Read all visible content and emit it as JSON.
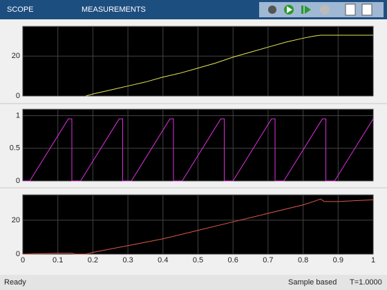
{
  "ui": {
    "tabs": [
      "SCOPE",
      "MEASUREMENTS"
    ],
    "status": {
      "left": "Ready",
      "mode": "Sample based",
      "time": "T=1.0000"
    }
  },
  "chart_data": [
    {
      "type": "line",
      "xlim": [
        0,
        1
      ],
      "ylim": [
        0,
        35
      ],
      "yticks": [
        0,
        20
      ],
      "xticks": [
        0,
        0.1,
        0.2,
        0.3,
        0.4,
        0.5,
        0.6,
        0.7,
        0.8,
        0.9,
        1
      ],
      "xtick_labels": false,
      "grid": true,
      "x": [
        0.18,
        0.2,
        0.25,
        0.3,
        0.35,
        0.4,
        0.45,
        0.5,
        0.55,
        0.6,
        0.65,
        0.7,
        0.75,
        0.8,
        0.83,
        0.85,
        1.0
      ],
      "series": [
        {
          "color": "#e8e85a",
          "values": [
            0,
            1,
            3,
            5,
            7,
            9.5,
            11.5,
            14,
            16.5,
            19.5,
            22,
            24.5,
            27,
            29,
            30,
            30.5,
            30.5
          ]
        }
      ]
    },
    {
      "type": "line",
      "xlim": [
        0,
        1
      ],
      "ylim": [
        0,
        1.1
      ],
      "yticks": [
        0,
        0.5,
        1
      ],
      "xticks": [
        0,
        0.1,
        0.2,
        0.3,
        0.4,
        0.5,
        0.6,
        0.7,
        0.8,
        0.9,
        1
      ],
      "xtick_labels": false,
      "grid": true,
      "x": [
        0,
        0.02,
        0.13,
        0.14,
        0.14,
        0.165,
        0.275,
        0.285,
        0.285,
        0.31,
        0.42,
        0.43,
        0.43,
        0.455,
        0.565,
        0.575,
        0.575,
        0.6,
        0.71,
        0.72,
        0.72,
        0.745,
        0.855,
        0.865,
        0.865,
        0.89,
        1.0
      ],
      "series": [
        {
          "color": "#e030e0",
          "values": [
            0,
            0,
            0.95,
            0.95,
            0,
            0,
            0.95,
            0.95,
            0,
            0,
            0.95,
            0.95,
            0,
            0,
            0.95,
            0.95,
            0,
            0,
            0.95,
            0.95,
            0,
            0,
            0.95,
            0.95,
            0,
            0,
            0.95
          ]
        }
      ]
    },
    {
      "type": "line",
      "xlim": [
        0,
        1
      ],
      "ylim": [
        0,
        35
      ],
      "yticks": [
        0,
        20
      ],
      "xticks": [
        0,
        0.1,
        0.2,
        0.3,
        0.4,
        0.5,
        0.6,
        0.7,
        0.8,
        0.9,
        1
      ],
      "xtick_labels": true,
      "grid": true,
      "x": [
        0,
        0.1,
        0.14,
        0.15,
        0.18,
        0.2,
        0.3,
        0.4,
        0.5,
        0.6,
        0.7,
        0.8,
        0.83,
        0.85,
        0.86,
        0.9,
        1.0
      ],
      "series": [
        {
          "color": "#e05a4a",
          "values": [
            0,
            0.5,
            0.5,
            0,
            0,
            1,
            5,
            9,
            14,
            19,
            24,
            29,
            31,
            32.5,
            31,
            31,
            32
          ]
        }
      ]
    }
  ]
}
